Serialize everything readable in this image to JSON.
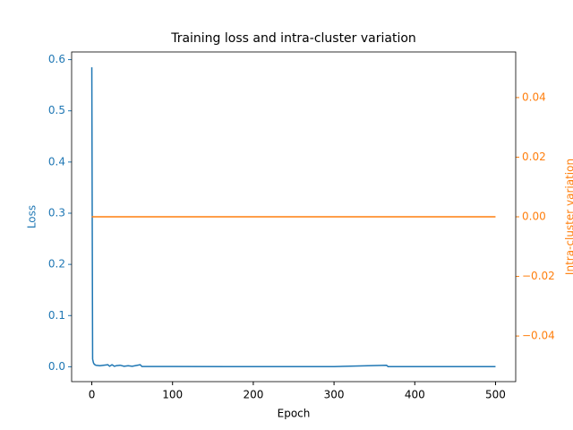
{
  "chart_data": {
    "type": "line",
    "title": "Training loss and intra-cluster variation",
    "xlabel": "Epoch",
    "ylabel": "Loss",
    "y2label": "Intra-cluster variation",
    "xlim": [
      -25,
      525
    ],
    "xticks": [
      0,
      100,
      200,
      300,
      400,
      500
    ],
    "ylim": [
      -0.029,
      0.615
    ],
    "yticks": [
      {
        "value": 0,
        "label": "0.0"
      },
      0.1,
      0.2,
      0.3,
      0.4,
      0.5,
      0.6
    ],
    "y2lim": [
      -0.0553,
      0.0553
    ],
    "y2ticks": [
      {
        "value": -0.04,
        "label": "−0.04"
      },
      {
        "value": -0.02,
        "label": "−0.02"
      },
      {
        "value": 0,
        "label": "0.00"
      },
      {
        "value": 0.02,
        "label": "0.02"
      },
      {
        "value": 0.04,
        "label": "0.04"
      }
    ],
    "series": [
      {
        "name": "Loss",
        "color": "#1f77b4",
        "x": [
          0,
          1,
          2,
          3,
          5,
          10,
          20,
          22,
          25,
          28,
          30,
          35,
          40,
          45,
          50,
          60,
          62,
          100,
          200,
          300,
          365,
          367,
          400,
          500
        ],
        "values": [
          0.585,
          0.015,
          0.008,
          0.005,
          0.003,
          0.002,
          0.004,
          0.001,
          0.004,
          0.001,
          0.002,
          0.003,
          0.001,
          0.002,
          0.001,
          0.004,
          0.0005,
          0.0005,
          0.0003,
          0.0003,
          0.003,
          0.0003,
          0.0002,
          0.0002
        ]
      },
      {
        "name": "Intra-cluster variation",
        "color": "#ff7f0e",
        "axis": "y2",
        "x": [
          0,
          500
        ],
        "values": [
          0,
          0
        ]
      }
    ]
  }
}
